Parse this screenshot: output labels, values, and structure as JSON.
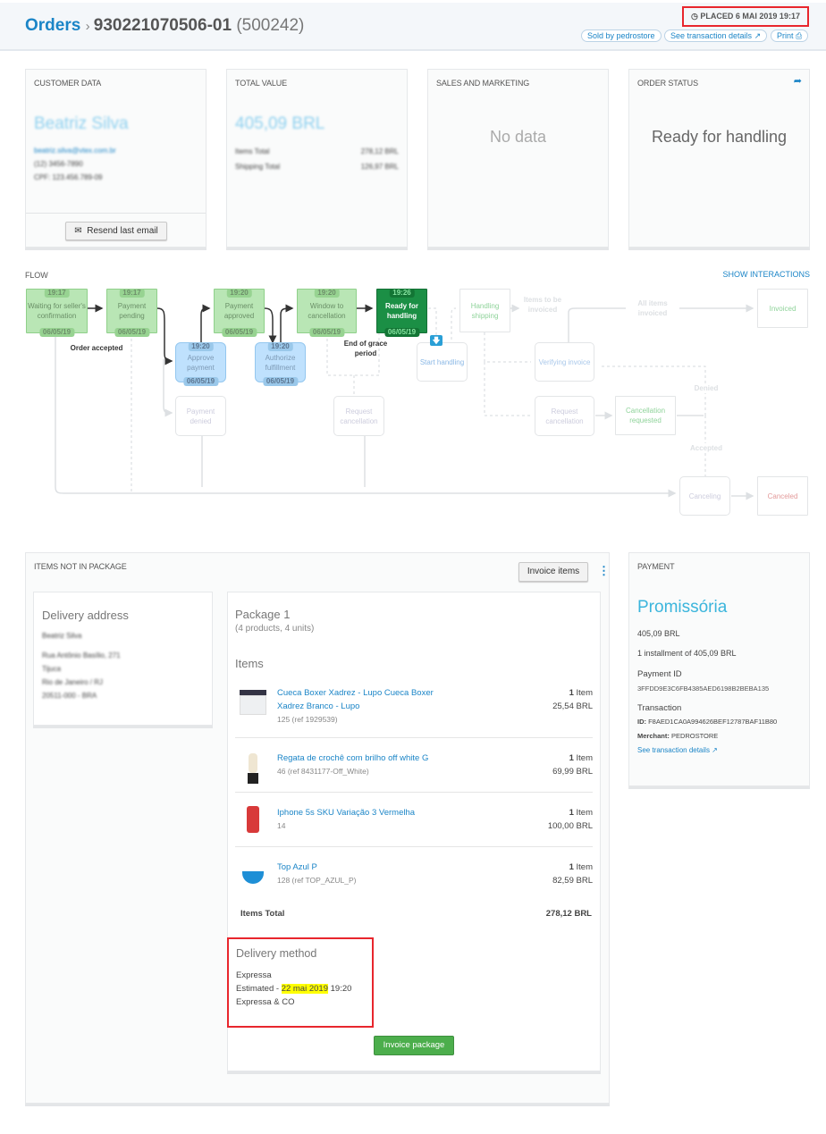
{
  "header": {
    "breadcrumb_root": "Orders",
    "order_id": "930221070506-01",
    "order_seq": "(500242)",
    "placed": "PLACED 6 MAI 2019 19:17",
    "sold_by": "Sold by pedrostore",
    "transaction_details": "See transaction details",
    "print": "Print"
  },
  "customer": {
    "title": "CUSTOMER DATA",
    "name": "Beatriz Silva",
    "email": "beatriz.silva@vtex.com.br",
    "phone": "(12) 3456-7890",
    "cpf": "CPF: 123.456.789-09",
    "resend": "Resend last email"
  },
  "total": {
    "title": "TOTAL VALUE",
    "value": "405,09 BRL",
    "rows": [
      {
        "label": "Items Total",
        "value": "278,12 BRL"
      },
      {
        "label": "Shipping Total",
        "value": "126,97 BRL"
      }
    ]
  },
  "sales": {
    "title": "SALES AND MARKETING",
    "empty": "No data"
  },
  "status": {
    "title": "ORDER STATUS",
    "value": "Ready for handling"
  },
  "flow": {
    "title": "FLOW",
    "show_interactions": "SHOW INTERACTIONS",
    "steps": {
      "waiting": {
        "label": "Waiting for seller's confirmation",
        "time": "19:17",
        "date": "06/05/19"
      },
      "pending": {
        "label": "Payment pending",
        "time": "19:17",
        "date": "06/05/19"
      },
      "approved": {
        "label": "Payment approved",
        "time": "19:20",
        "date": "06/05/19"
      },
      "window": {
        "label": "Window to cancellation",
        "time": "19:20",
        "date": "06/05/19"
      },
      "ready": {
        "label": "Ready for handling",
        "time": "19:26",
        "date": "06/05/19"
      },
      "approve": {
        "label": "Approve payment",
        "time": "19:20",
        "date": "06/05/19"
      },
      "authorize": {
        "label": "Authorize fulfillment",
        "time": "19:20",
        "date": "06/05/19"
      },
      "handling_shipping": {
        "label": "Handling shipping"
      },
      "invoiced": {
        "label": "Invoiced"
      },
      "start_handling": {
        "label": "Start handling"
      },
      "verifying": {
        "label": "Verifying invoice"
      },
      "payment_denied": {
        "label": "Payment denied"
      },
      "request_cancel_1": {
        "label": "Request cancellation"
      },
      "request_cancel_2": {
        "label": "Request cancellation"
      },
      "cancel_requested": {
        "label": "Cancellation requested"
      },
      "canceling": {
        "label": "Canceling"
      },
      "canceled": {
        "label": "Canceled"
      }
    },
    "notes": {
      "order_accepted": "Order accepted",
      "end_grace": "End of grace period",
      "items_to_invoice": "Items to be invoiced",
      "all_invoiced": "All items invoiced",
      "denied": "Denied",
      "accepted": "Accepted"
    }
  },
  "items_panel": {
    "title": "ITEMS NOT IN PACKAGE",
    "invoice_items": "Invoice items"
  },
  "address": {
    "title": "Delivery address",
    "lines": [
      "Beatriz Silva",
      "Rua Antônio Basílio, 271",
      "Tijuca",
      "Rio de Janeiro / RJ",
      "20511-000 - BRA"
    ]
  },
  "package": {
    "title": "Package 1",
    "summary": "(4 products, 4 units)",
    "items_heading": "Items",
    "items": [
      {
        "name": "Cueca Boxer Xadrez - Lupo Cueca Boxer Xadrez Branco - Lupo",
        "ref": "125 (ref 1929539)",
        "qty": "1",
        "qty_unit": "Item",
        "price": "25,54 BRL"
      },
      {
        "name": "Regata de crochê com brilho off white G",
        "ref": "46 (ref 8431177-Off_White)",
        "qty": "1",
        "qty_unit": "Item",
        "price": "69,99 BRL"
      },
      {
        "name": "Iphone 5s SKU Variação 3 Vermelha",
        "ref": "14",
        "qty": "1",
        "qty_unit": "Item",
        "price": "100,00 BRL"
      },
      {
        "name": "Top Azul P",
        "ref": "128 (ref TOP_AZUL_P)",
        "qty": "1",
        "qty_unit": "Item",
        "price": "82,59 BRL"
      }
    ],
    "items_total_label": "Items Total",
    "items_total": "278,12 BRL",
    "delivery": {
      "title": "Delivery method",
      "name": "Expressa",
      "estimated_prefix": "Estimated - ",
      "estimated_date": "22 mai 2019",
      "estimated_time": "19:20",
      "carrier": "Expressa & CO"
    },
    "invoice_package": "Invoice package"
  },
  "payment": {
    "title": "PAYMENT",
    "method": "Promissória",
    "amount": "405,09 BRL",
    "installments": "1 installment of 405,09 BRL",
    "payment_id_label": "Payment ID",
    "payment_id": "3FFDD9E3C6FB4385AED6198B2BEBA135",
    "transaction_label": "Transaction",
    "id_label": "ID:",
    "transaction_id": "F8AED1CA0A994626BEF12787BAF11B80",
    "merchant_label": "Merchant:",
    "merchant": "PEDROSTORE",
    "details_link": "See transaction details"
  },
  "colors": {
    "accent": "#1b85c7",
    "done": "#b9e6b5",
    "current": "#1b8f45",
    "pending_blue": "#bfe1fd",
    "highlight": "#ffff00",
    "annotation": "#e8262d",
    "button_green": "#4cae4c"
  }
}
